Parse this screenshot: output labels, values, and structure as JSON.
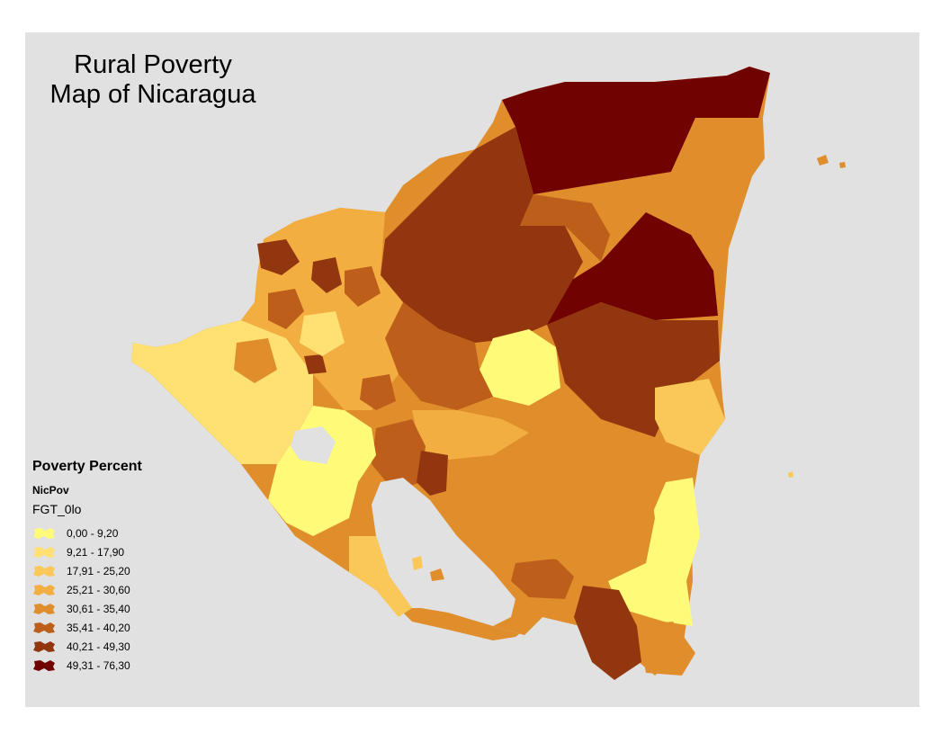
{
  "title_line1": "Rural Poverty",
  "title_line2": "Map of Nicaragua",
  "legend": {
    "title": "Poverty Percent",
    "layer": "NicPov",
    "field": "FGT_0lo",
    "classes": [
      {
        "label": "0,00 - 9,20",
        "color": "#fffb78"
      },
      {
        "label": "9,21 - 17,90",
        "color": "#fee073"
      },
      {
        "label": "17,91 - 25,20",
        "color": "#fac858"
      },
      {
        "label": "25,21 - 30,60",
        "color": "#f3ae42"
      },
      {
        "label": "30,61 - 35,40",
        "color": "#e08e2c"
      },
      {
        "label": "35,41 - 40,20",
        "color": "#bd5f1a"
      },
      {
        "label": "40,21 - 49,30",
        "color": "#923610"
      },
      {
        "label": "49,31 - 76,30",
        "color": "#700202"
      }
    ]
  }
}
